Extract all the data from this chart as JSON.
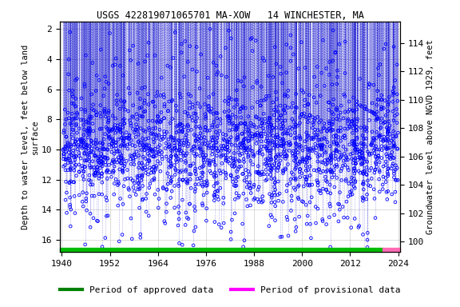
{
  "title": "USGS 422819071065701 MA-XOW   14 WINCHESTER, MA",
  "xlabel_ticks": [
    1940,
    1952,
    1964,
    1976,
    1988,
    2000,
    2012,
    2024
  ],
  "ylim_left": [
    16.8,
    1.5
  ],
  "ylim_right": [
    99.3,
    115.5
  ],
  "yticks_left": [
    2,
    4,
    6,
    8,
    10,
    12,
    14,
    16
  ],
  "yticks_right": [
    100,
    102,
    104,
    106,
    108,
    110,
    112,
    114
  ],
  "ylabel_left": "Depth to water level, feet below land\nsurface",
  "ylabel_right": "Groundwater level above NGVD 1929, feet",
  "scatter_color": "#0000ff",
  "line_color": "#0000cc",
  "bg_color": "#ffffff",
  "legend_items": [
    {
      "label": "Period of approved data",
      "color": "#008000"
    },
    {
      "label": "Period of provisional data",
      "color": "#ff00ff"
    }
  ],
  "title_fontsize": 8.5,
  "axis_fontsize": 7.5,
  "tick_fontsize": 8,
  "seed": 42,
  "n_points": 2200,
  "x_start": 1939.5,
  "x_end": 2024.5,
  "x_data_start": 1940,
  "x_data_end": 2024,
  "green_bar_start": 1939.5,
  "green_bar_end": 2020,
  "pink_bar_start": 2020,
  "pink_bar_end": 2024.5,
  "y_top": 1.5
}
